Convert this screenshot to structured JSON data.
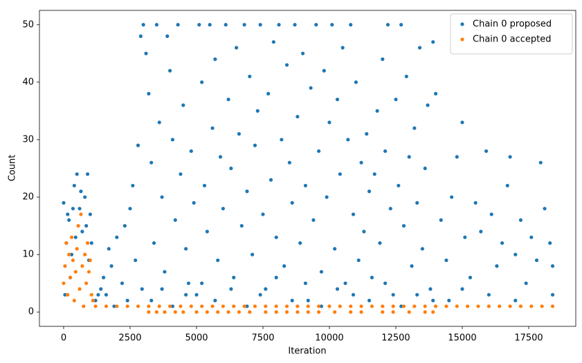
{
  "chart_data": {
    "type": "scatter",
    "xlabel": "Iteration",
    "ylabel": "Count",
    "xlim": [
      -911,
      19271
    ],
    "ylim": [
      -2.5,
      52.5
    ],
    "xticks": [
      0,
      2500,
      5000,
      7500,
      10000,
      12500,
      15000,
      17500
    ],
    "yticks": [
      0,
      10,
      20,
      30,
      40,
      50
    ],
    "legend": "upper right",
    "series": [
      {
        "name": "Chain 0 proposed",
        "color": "#1f77b4",
        "x": [
          0,
          100,
          200,
          300,
          400,
          500,
          600,
          700,
          800,
          900,
          1000,
          1050,
          50,
          250,
          450,
          650,
          850,
          950,
          150,
          350,
          1200,
          1300,
          1400,
          1500,
          1600,
          1700,
          1800,
          2000,
          2200,
          2300,
          2500,
          2600,
          2700,
          2800,
          2900,
          3000,
          2950,
          2400,
          1900,
          3100,
          3200,
          3300,
          3400,
          3500,
          3600,
          3700,
          3800,
          3900,
          4000,
          4100,
          4200,
          4300,
          4400,
          4500,
          4600,
          4700,
          4800,
          4900,
          5000,
          5100,
          5200,
          5300,
          5400,
          5500,
          5600,
          5700,
          5800,
          5900,
          6000,
          6100,
          6200,
          6300,
          6400,
          6500,
          6600,
          6700,
          6800,
          6900,
          7000,
          7100,
          7200,
          7300,
          7400,
          7500,
          7600,
          7700,
          7800,
          7900,
          8000,
          8100,
          8200,
          8300,
          8400,
          8500,
          8600,
          8700,
          8800,
          8900,
          9000,
          9100,
          9200,
          9300,
          9400,
          9500,
          9600,
          9700,
          9800,
          9900,
          10000,
          10100,
          10200,
          10300,
          10400,
          10500,
          10600,
          10700,
          10800,
          10900,
          11000,
          11100,
          11200,
          11300,
          11400,
          11500,
          11600,
          11700,
          11800,
          11900,
          12000,
          12100,
          12200,
          12300,
          12400,
          12500,
          12600,
          12700,
          12800,
          12900,
          13000,
          13100,
          13200,
          13300,
          13400,
          13500,
          13600,
          13700,
          13800,
          13900,
          14000,
          14200,
          14400,
          14600,
          14800,
          15000,
          15100,
          15300,
          15500,
          15700,
          15900,
          16100,
          16300,
          16500,
          16700,
          16800,
          17000,
          17200,
          17400,
          17600,
          17800,
          17950,
          18100,
          18300,
          18400,
          18400,
          16000,
          17000,
          15000,
          14500,
          3300,
          3700,
          4100,
          4600,
          5200,
          5700,
          6300,
          6900,
          7400,
          8000,
          8600,
          9100,
          9700,
          10300,
          10900,
          11500,
          12100,
          12700,
          13300,
          13900
        ],
        "values": [
          19,
          12,
          16,
          10,
          22,
          24,
          18,
          14,
          20,
          24,
          17,
          12,
          3,
          6,
          13,
          21,
          15,
          9,
          17,
          18,
          2,
          3,
          4,
          6,
          3,
          11,
          8,
          13,
          5,
          15,
          18,
          22,
          9,
          29,
          48,
          50,
          4,
          2,
          1,
          45,
          38,
          26,
          12,
          50,
          33,
          20,
          7,
          48,
          42,
          30,
          16,
          50,
          24,
          36,
          11,
          5,
          28,
          19,
          3,
          50,
          40,
          22,
          14,
          50,
          32,
          44,
          9,
          27,
          18,
          50,
          37,
          25,
          6,
          46,
          31,
          15,
          50,
          21,
          41,
          10,
          29,
          35,
          50,
          17,
          4,
          38,
          23,
          47,
          13,
          50,
          30,
          8,
          43,
          26,
          19,
          50,
          34,
          12,
          45,
          22,
          2,
          39,
          16,
          50,
          28,
          7,
          42,
          20,
          33,
          50,
          11,
          37,
          24,
          46,
          5,
          30,
          50,
          17,
          40,
          9,
          26,
          14,
          31,
          21,
          6,
          24,
          35,
          12,
          44,
          28,
          50,
          18,
          3,
          37,
          22,
          50,
          15,
          41,
          27,
          8,
          32,
          19,
          46,
          11,
          25,
          36,
          4,
          47,
          38,
          16,
          9,
          20,
          27,
          33,
          13,
          6,
          19,
          14,
          28,
          17,
          8,
          12,
          22,
          27,
          10,
          16,
          5,
          13,
          9,
          26,
          18,
          12,
          8,
          3,
          3,
          2,
          4,
          2,
          2,
          4,
          1,
          3,
          5,
          2,
          4,
          1,
          3,
          6,
          2,
          5,
          1,
          4,
          3,
          2,
          5,
          1,
          3,
          2
        ]
      },
      {
        "name": "Chain 0 accepted",
        "color": "#ff7f0e",
        "x": [
          0,
          50,
          100,
          150,
          200,
          250,
          300,
          350,
          400,
          450,
          500,
          550,
          600,
          650,
          700,
          750,
          800,
          850,
          900,
          950,
          1000,
          1050,
          1100,
          1200,
          1600,
          2000,
          2400,
          2800,
          3200,
          3600,
          4000,
          4400,
          4800,
          5200,
          5600,
          6000,
          6400,
          6800,
          7200,
          7600,
          8000,
          8400,
          8800,
          9200,
          9600,
          10000,
          10400,
          10800,
          11200,
          11600,
          12000,
          12400,
          12800,
          13200,
          13600,
          14000,
          14400,
          14800,
          15200,
          15600,
          16000,
          16400,
          16800,
          17200,
          17600,
          18000,
          18400,
          3200,
          3500,
          3800,
          4200,
          4500,
          5000,
          5400,
          5800,
          6200,
          6600,
          7000,
          7600,
          8000,
          8400,
          8800,
          9200,
          9600,
          10200,
          10800,
          11200,
          12000,
          12400,
          13000,
          13600,
          13900
        ],
        "values": [
          5,
          8,
          12,
          3,
          10,
          6,
          13,
          9,
          2,
          7,
          11,
          15,
          4,
          17,
          8,
          1,
          10,
          5,
          12,
          7,
          9,
          3,
          2,
          1,
          1,
          1,
          1,
          1,
          1,
          1,
          1,
          1,
          1,
          1,
          1,
          1,
          1,
          1,
          1,
          1,
          1,
          1,
          1,
          1,
          1,
          1,
          1,
          1,
          1,
          1,
          1,
          1,
          1,
          1,
          1,
          1,
          1,
          1,
          1,
          1,
          1,
          1,
          1,
          1,
          1,
          1,
          1,
          0,
          0,
          0,
          0,
          0,
          0,
          0,
          0,
          0,
          0,
          0,
          0,
          0,
          0,
          0,
          0,
          0,
          0,
          0,
          0,
          0,
          0,
          0,
          0,
          0
        ]
      }
    ]
  }
}
